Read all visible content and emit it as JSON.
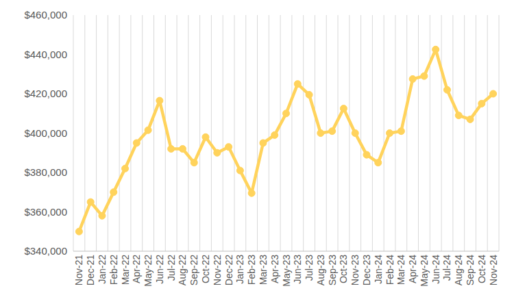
{
  "chart_data": {
    "type": "line",
    "categories": [
      "Nov-21",
      "Dec-21",
      "Jan-22",
      "Feb-22",
      "Mar-22",
      "Apr-22",
      "May-22",
      "Jun-22",
      "Jul-22",
      "Aug-22",
      "Sep-22",
      "Oct-22",
      "Nov-22",
      "Dec-22",
      "Jan-23",
      "Feb-23",
      "Mar-23",
      "Apr-23",
      "May-23",
      "Jun-23",
      "Jul-23",
      "Aug-23",
      "Sep-23",
      "Oct-23",
      "Nov-23",
      "Dec-23",
      "Jan-24",
      "Feb-24",
      "Mar-24",
      "Apr-24",
      "May-24",
      "Jun-24",
      "Jul-24",
      "Aug-24",
      "Sep-24",
      "Oct-24",
      "Nov-24"
    ],
    "values": [
      350000,
      365000,
      358000,
      370000,
      382000,
      395000,
      401500,
      416500,
      392000,
      392000,
      385000,
      398000,
      390000,
      393000,
      381000,
      369500,
      395000,
      399000,
      410000,
      425000,
      419500,
      400000,
      401000,
      412500,
      400000,
      389000,
      385000,
      400000,
      401000,
      427500,
      429000,
      442500,
      422000,
      409000,
      407000,
      415000,
      420000
    ],
    "color": "#ffd35c",
    "marker": "circle",
    "ylim": [
      340000,
      460000
    ],
    "yticks": [
      {
        "value": 340000,
        "label": "$340,000"
      },
      {
        "value": 360000,
        "label": "$360,000"
      },
      {
        "value": 380000,
        "label": "$380,000"
      },
      {
        "value": 400000,
        "label": "$400,000"
      },
      {
        "value": 420000,
        "label": "$420,000"
      },
      {
        "value": 440000,
        "label": "$440,000"
      },
      {
        "value": 460000,
        "label": "$460,000"
      }
    ],
    "grid": true
  }
}
